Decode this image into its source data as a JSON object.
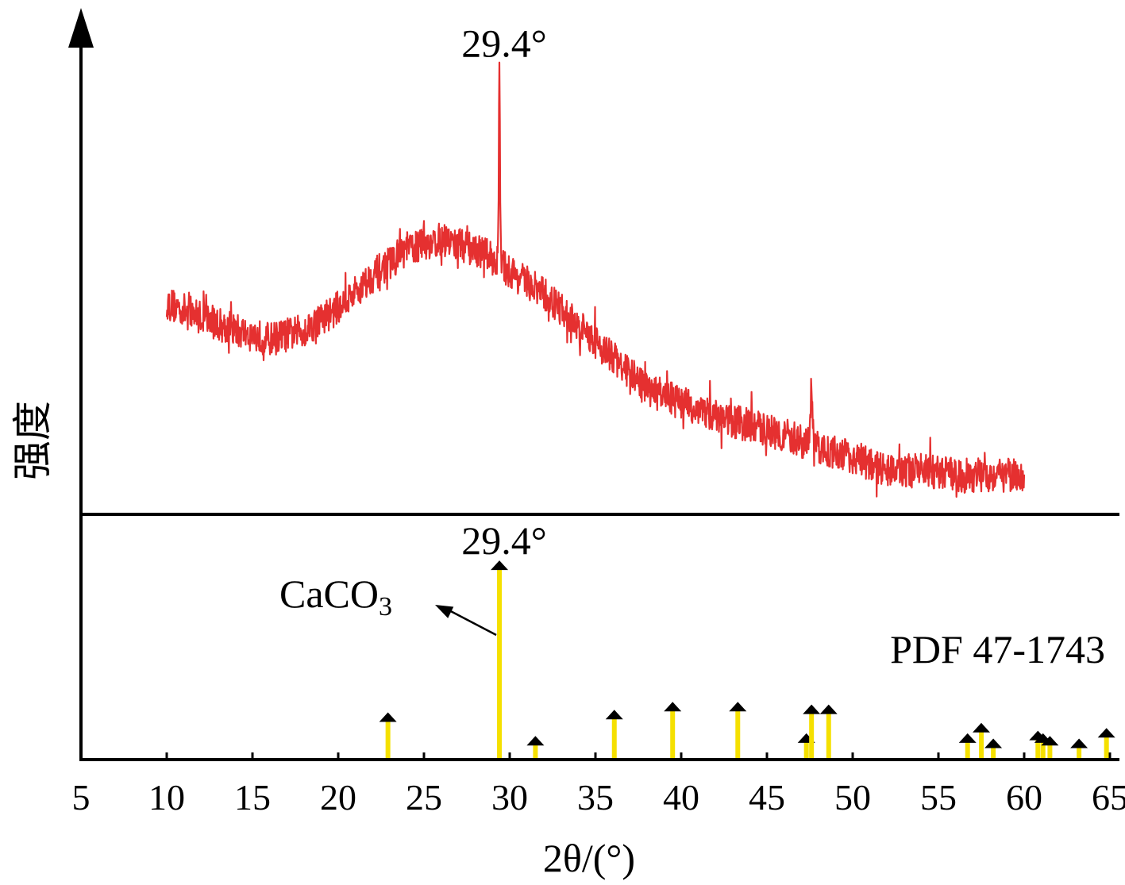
{
  "chart_data": {
    "type": "line",
    "title": "",
    "xlabel": "2θ/(°)",
    "ylabel": "强度",
    "xlim": [
      5,
      65
    ],
    "x_ticks": [
      5,
      10,
      15,
      20,
      25,
      30,
      35,
      40,
      45,
      50,
      55,
      60,
      65
    ],
    "grid": false,
    "colors": {
      "pattern": "#e53030",
      "reference_stick": "#f5e000",
      "axis": "#000000"
    },
    "pattern": {
      "x_range": [
        10,
        60
      ],
      "profile": [
        [
          10,
          0.47
        ],
        [
          12,
          0.44
        ],
        [
          14,
          0.41
        ],
        [
          16,
          0.39
        ],
        [
          18,
          0.41
        ],
        [
          20,
          0.46
        ],
        [
          22,
          0.53
        ],
        [
          24,
          0.59
        ],
        [
          26,
          0.61
        ],
        [
          28,
          0.59
        ],
        [
          29,
          0.57
        ],
        [
          30,
          0.54
        ],
        [
          32,
          0.49
        ],
        [
          34,
          0.42
        ],
        [
          36,
          0.35
        ],
        [
          38,
          0.28
        ],
        [
          40,
          0.25
        ],
        [
          42,
          0.22
        ],
        [
          44,
          0.2
        ],
        [
          46,
          0.18
        ],
        [
          48,
          0.15
        ],
        [
          50,
          0.13
        ],
        [
          52,
          0.1
        ],
        [
          54,
          0.1
        ],
        [
          56,
          0.09
        ],
        [
          58,
          0.09
        ],
        [
          60,
          0.09
        ]
      ],
      "peaks": [
        {
          "x": 29.4,
          "height": 0.98,
          "label": "29.4°"
        },
        {
          "x": 47.6,
          "height": 0.28,
          "label": ""
        }
      ]
    },
    "reference": {
      "name": "PDF 47-1743",
      "phase": "CaCO",
      "phase_subscript": "3",
      "sticks": [
        {
          "x": 22.9,
          "intensity": 0.15
        },
        {
          "x": 29.4,
          "intensity": 0.73,
          "label": "29.4°"
        },
        {
          "x": 31.5,
          "intensity": 0.06
        },
        {
          "x": 36.1,
          "intensity": 0.16
        },
        {
          "x": 39.5,
          "intensity": 0.19
        },
        {
          "x": 43.3,
          "intensity": 0.19
        },
        {
          "x": 47.3,
          "intensity": 0.07
        },
        {
          "x": 47.6,
          "intensity": 0.18
        },
        {
          "x": 48.6,
          "intensity": 0.18
        },
        {
          "x": 56.7,
          "intensity": 0.07
        },
        {
          "x": 57.5,
          "intensity": 0.11
        },
        {
          "x": 58.2,
          "intensity": 0.05
        },
        {
          "x": 60.8,
          "intensity": 0.08
        },
        {
          "x": 61.1,
          "intensity": 0.07
        },
        {
          "x": 61.5,
          "intensity": 0.06
        },
        {
          "x": 63.2,
          "intensity": 0.05
        },
        {
          "x": 64.8,
          "intensity": 0.09
        }
      ]
    }
  }
}
